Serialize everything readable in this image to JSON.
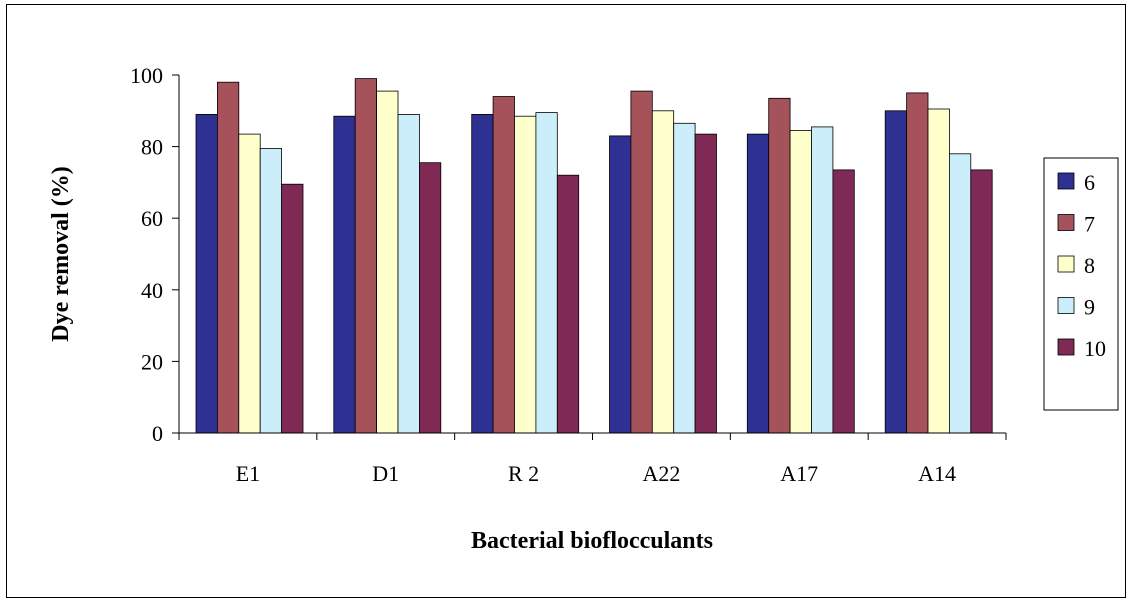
{
  "chart_data": {
    "type": "bar",
    "title": "",
    "xlabel": "Bacterial bioflocculants",
    "ylabel": "Dye removal (%)",
    "ylim": [
      0,
      100
    ],
    "yticks": [
      0,
      20,
      40,
      60,
      80,
      100
    ],
    "grid": false,
    "legend_position": "right",
    "categories": [
      "E1",
      "D1",
      "R 2",
      "A22",
      "A17",
      "A14"
    ],
    "series": [
      {
        "name": "6",
        "color": "#2E3192",
        "values": [
          89,
          88.5,
          89,
          83,
          83.5,
          90
        ]
      },
      {
        "name": "7",
        "color": "#A6525A",
        "values": [
          98,
          99,
          94,
          95.5,
          93.5,
          95
        ]
      },
      {
        "name": "8",
        "color": "#FFFFCC",
        "values": [
          83.5,
          95.5,
          88.5,
          90,
          84.5,
          90.5
        ]
      },
      {
        "name": "9",
        "color": "#CCEEFA",
        "values": [
          79.5,
          89,
          89.5,
          86.5,
          85.5,
          78
        ]
      },
      {
        "name": "10",
        "color": "#7E2A55",
        "values": [
          69.5,
          75.5,
          72,
          83.5,
          73.5,
          73.5
        ]
      }
    ]
  }
}
